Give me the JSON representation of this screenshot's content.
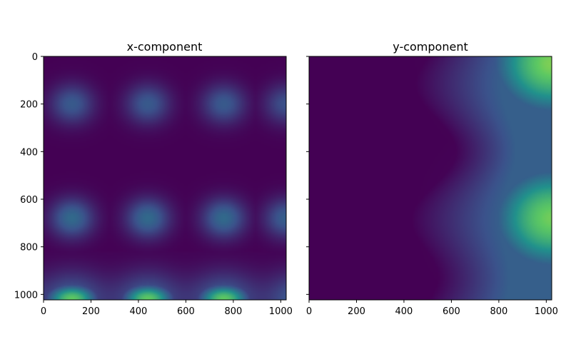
{
  "chart_data": [
    {
      "type": "heatmap",
      "title": "x-component",
      "xlim": [
        0,
        1023
      ],
      "ylim": [
        1023,
        0
      ],
      "xticks": [
        0,
        200,
        400,
        600,
        800,
        1000
      ],
      "yticks": [
        0,
        200,
        400,
        600,
        800,
        1000
      ],
      "xtick_labels": [
        "0",
        "200",
        "400",
        "600",
        "800",
        "1000"
      ],
      "ytick_labels": [
        "0",
        "200",
        "400",
        "600",
        "800",
        "1000"
      ],
      "colormap": "viridis",
      "y_axis": "inverted (image origin top-left)",
      "blobs": [
        {
          "x": 120,
          "y": 200,
          "intensity": 0.28
        },
        {
          "x": 440,
          "y": 200,
          "intensity": 0.28
        },
        {
          "x": 760,
          "y": 200,
          "intensity": 0.28
        },
        {
          "x": 1023,
          "y": 200,
          "intensity": 0.25
        },
        {
          "x": 120,
          "y": 680,
          "intensity": 0.34
        },
        {
          "x": 440,
          "y": 680,
          "intensity": 0.34
        },
        {
          "x": 760,
          "y": 680,
          "intensity": 0.34
        },
        {
          "x": 1023,
          "y": 680,
          "intensity": 0.3
        },
        {
          "x": 120,
          "y": 1020,
          "intensity": 0.75
        },
        {
          "x": 440,
          "y": 1020,
          "intensity": 0.75
        },
        {
          "x": 760,
          "y": 1020,
          "intensity": 0.75
        }
      ]
    },
    {
      "type": "heatmap",
      "title": "y-component",
      "xlim": [
        0,
        1023
      ],
      "ylim": [
        1023,
        0
      ],
      "xticks": [
        0,
        200,
        400,
        600,
        800,
        1000
      ],
      "yticks": [
        0,
        200,
        400,
        600,
        800,
        1000
      ],
      "xtick_labels": [
        "0",
        "200",
        "400",
        "600",
        "800",
        "1000"
      ],
      "ytick_labels": [],
      "colormap": "viridis",
      "y_axis": "inverted, shared with x-component",
      "peaks": [
        {
          "x": 1023,
          "y": 30,
          "intensity": 0.8
        },
        {
          "x": 1023,
          "y": 680,
          "intensity": 0.78
        }
      ]
    }
  ],
  "colors": {
    "viridis_stops": [
      "#440154",
      "#3b528b",
      "#21918c",
      "#5ec962",
      "#fde725"
    ],
    "axes": "#000000",
    "background": "#ffffff"
  }
}
